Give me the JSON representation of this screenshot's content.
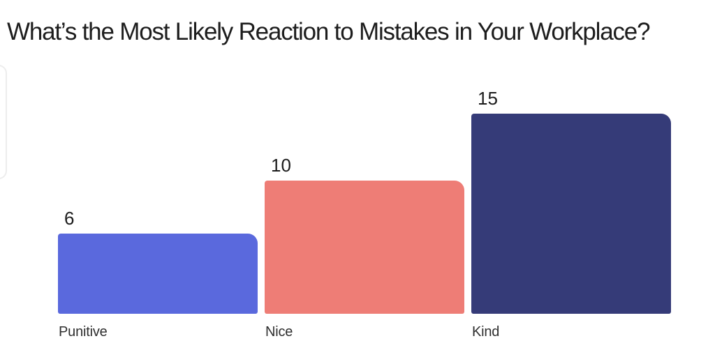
{
  "page": {
    "background": "#ffffff"
  },
  "chart_data": {
    "type": "bar",
    "title": "What’s the Most Likely Reaction to Mistakes in Your Workplace?",
    "categories": [
      "Punitive",
      "Nice",
      "Kind"
    ],
    "values": [
      6,
      10,
      15
    ],
    "value_labels": [
      "6",
      "10",
      "15"
    ],
    "bar_colors": [
      "#5a69dd",
      "#ee7d76",
      "#353b78"
    ],
    "xlabel": "",
    "ylabel": "",
    "ylim": [
      0,
      15
    ],
    "grid": false,
    "legend_position": "none",
    "orientation": "vertical",
    "title_color": "#1d1d1d",
    "category_label_color": "#2e2e2e",
    "value_label_color": "#1c1c1c"
  }
}
